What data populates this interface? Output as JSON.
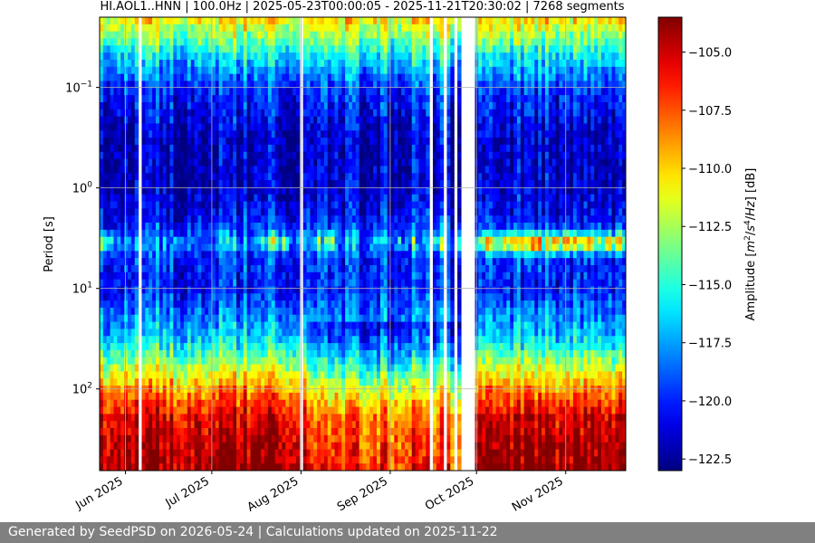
{
  "chart_data": {
    "type": "heatmap",
    "title": "HI.AOL1..HNN | 100.0Hz | 2025-05-23T00:00:05 - 2025-11-21T20:30:02 | 7268 segments",
    "xlabel": "",
    "ylabel": "Period [s]",
    "colorbar_label_parts": [
      "Amplitude [",
      "m",
      "2",
      "/",
      "s",
      "4",
      "/",
      "Hz",
      "] [dB]"
    ],
    "x_start": "2025-05-23T00:00:05",
    "x_end": "2025-11-21T20:30:02",
    "x_ticks": [
      {
        "date": "2025-06-01",
        "label": "Jun 2025"
      },
      {
        "date": "2025-07-01",
        "label": "Jul 2025"
      },
      {
        "date": "2025-08-01",
        "label": "Aug 2025"
      },
      {
        "date": "2025-09-01",
        "label": "Sep 2025"
      },
      {
        "date": "2025-10-01",
        "label": "Oct 2025"
      },
      {
        "date": "2025-11-01",
        "label": "Nov 2025"
      }
    ],
    "y_scale": "log",
    "y_inverted": true,
    "y_range": [
      0.02,
      650
    ],
    "y_ticks": [
      {
        "value": 0.1,
        "base": "10",
        "exp": "−1"
      },
      {
        "value": 1,
        "base": "10",
        "exp": "0"
      },
      {
        "value": 10,
        "base": "10",
        "exp": "1"
      },
      {
        "value": 100,
        "base": "10",
        "exp": "2"
      }
    ],
    "colorbar_range": [
      -123,
      -103.5
    ],
    "colorbar_ticks": [
      "-105.0",
      "-107.5",
      "-110.0",
      "-112.5",
      "-115.0",
      "-117.5",
      "-120.0",
      "-122.5"
    ],
    "colorbar_tick_values": [
      -105.0,
      -107.5,
      -110.0,
      -112.5,
      -115.0,
      -117.5,
      -120.0,
      -122.5
    ],
    "colormap": "jet",
    "grid": true,
    "data_gaps": [
      {
        "start": "2025-05-31",
        "end": "2025-06-01"
      },
      {
        "start": "2025-06-05",
        "end": "2025-06-07"
      },
      {
        "start": "2025-08-01",
        "end": "2025-08-02"
      },
      {
        "start": "2025-09-14",
        "end": "2025-09-16"
      },
      {
        "start": "2025-09-20",
        "end": "2025-09-21"
      },
      {
        "start": "2025-09-23",
        "end": "2025-09-24"
      },
      {
        "start": "2025-09-25",
        "end": "2025-10-01"
      }
    ],
    "amplitude_profile_by_period": [
      {
        "period": 0.02,
        "db": -110.0
      },
      {
        "period": 0.05,
        "db": -116.0
      },
      {
        "period": 0.1,
        "db": -119.5
      },
      {
        "period": 0.3,
        "db": -121.5
      },
      {
        "period": 1,
        "db": -121.5
      },
      {
        "period": 3,
        "db": -119.5
      },
      {
        "period": 10,
        "db": -120.0
      },
      {
        "period": 30,
        "db": -116.5
      },
      {
        "period": 60,
        "db": -112.0
      },
      {
        "period": 100,
        "db": -108.5
      },
      {
        "period": 200,
        "db": -105.0
      },
      {
        "period": 650,
        "db": -103.5
      }
    ],
    "microseism_peak": {
      "period": 3.5,
      "db": -112.5
    }
  },
  "footer": {
    "text": "Generated by SeedPSD on 2026-05-24 | Calculations updated on 2025-11-22"
  }
}
